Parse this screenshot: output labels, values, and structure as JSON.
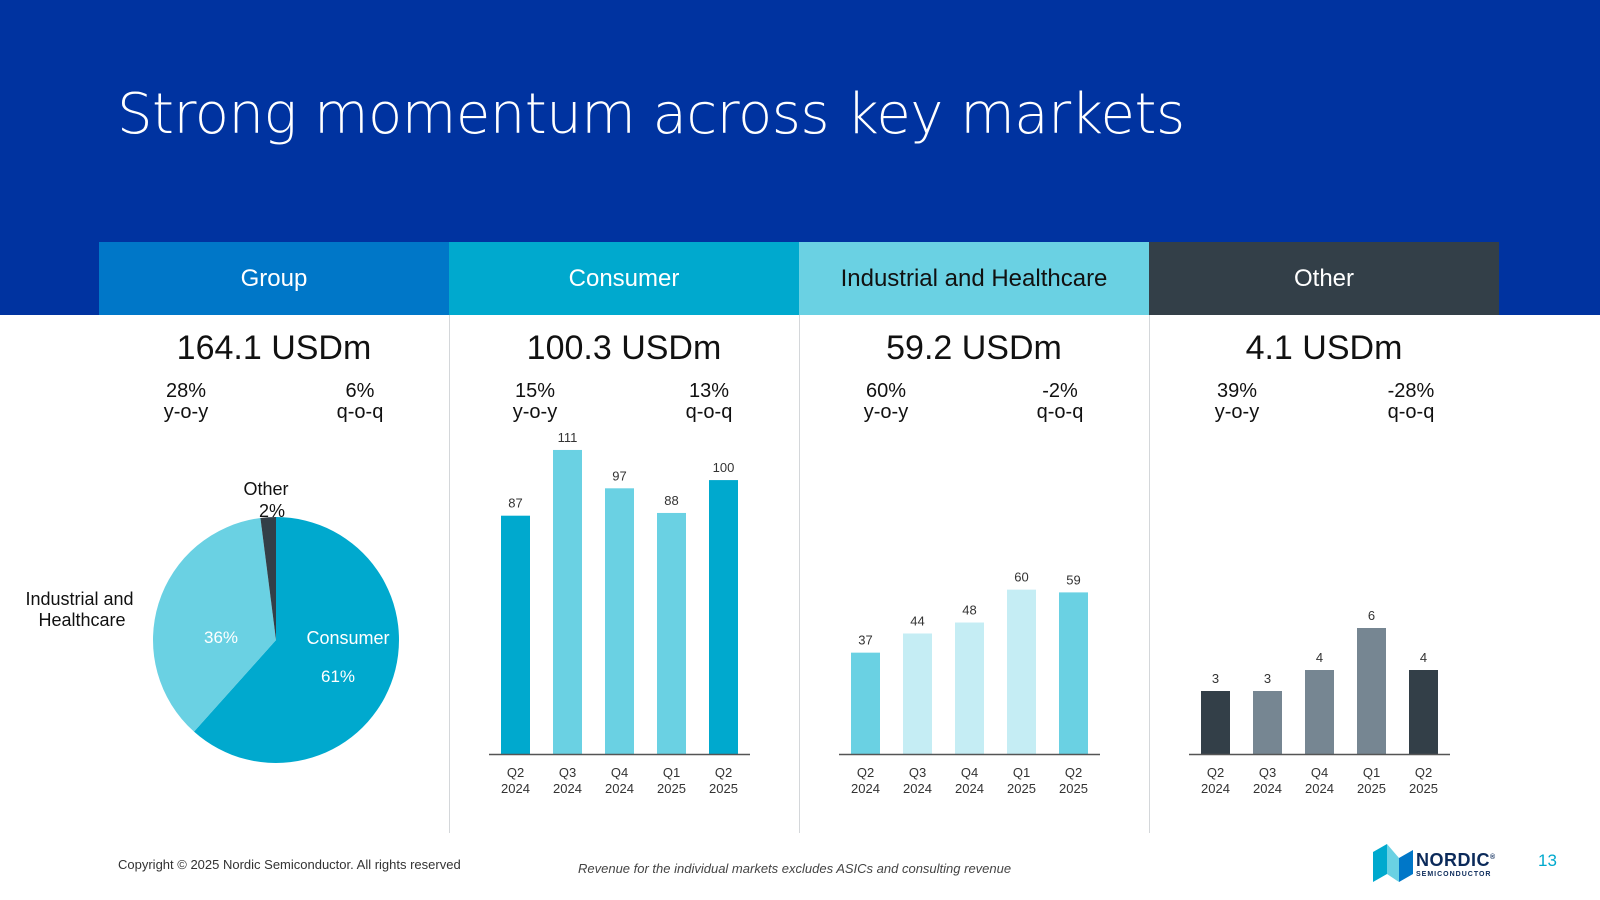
{
  "slide": {
    "title": "Strong momentum across key markets",
    "copyright": "Copyright © 2025 Nordic Semiconductor. All rights reserved",
    "footnote": "Revenue for the individual markets excludes ASICs and consulting revenue",
    "page_number": "13",
    "logo": {
      "wordmark": "NORDIC",
      "registered": "®",
      "subtitle": "SEMICONDUCTOR"
    }
  },
  "columns": [
    {
      "header": "Group",
      "header_color": "#0077c8",
      "header_text_color": "#ffffff",
      "total": "164.1 USDm",
      "yoy_value": "28%",
      "yoy_label": "y-o-y",
      "qoq_value": "6%",
      "qoq_label": "q-o-q"
    },
    {
      "header": "Consumer",
      "header_color": "#00a9ce",
      "header_text_color": "#ffffff",
      "total": "100.3 USDm",
      "yoy_value": "15%",
      "yoy_label": "y-o-y",
      "qoq_value": "13%",
      "qoq_label": "q-o-q"
    },
    {
      "header": "Industrial and Healthcare",
      "header_color": "#6ad1e3",
      "header_text_color": "#111111",
      "total": "59.2 USDm",
      "yoy_value": "60%",
      "yoy_label": "y-o-y",
      "qoq_value": "-2%",
      "qoq_label": "q-o-q"
    },
    {
      "header": "Other",
      "header_color": "#333f48",
      "header_text_color": "#ffffff",
      "total": "4.1 USDm",
      "yoy_value": "39%",
      "yoy_label": "y-o-y",
      "qoq_value": "-28%",
      "qoq_label": "q-o-q"
    }
  ],
  "chart_data": [
    {
      "type": "pie",
      "slices": [
        {
          "label": "Consumer",
          "value": 61,
          "value_label": "61%",
          "color": "#00a9ce"
        },
        {
          "label": "Industrial and Healthcare",
          "value": 36,
          "value_label": "36%",
          "color": "#6ad1e3"
        },
        {
          "label": "Other",
          "value": 2,
          "value_label": "2%",
          "color": "#333f48"
        }
      ]
    },
    {
      "type": "bar",
      "title": "Consumer",
      "categories": [
        [
          "Q2",
          "2024"
        ],
        [
          "Q3",
          "2024"
        ],
        [
          "Q4",
          "2024"
        ],
        [
          "Q1",
          "2025"
        ],
        [
          "Q2",
          "2025"
        ]
      ],
      "values": [
        87,
        111,
        97,
        88,
        100
      ],
      "colors": [
        "#00a9ce",
        "#6ad1e3",
        "#6ad1e3",
        "#6ad1e3",
        "#00a9ce"
      ],
      "ylim": [
        0,
        115
      ]
    },
    {
      "type": "bar",
      "title": "Industrial and Healthcare",
      "categories": [
        [
          "Q2",
          "2024"
        ],
        [
          "Q3",
          "2024"
        ],
        [
          "Q4",
          "2024"
        ],
        [
          "Q1",
          "2025"
        ],
        [
          "Q2",
          "2025"
        ]
      ],
      "values": [
        37,
        44,
        48,
        60,
        59
      ],
      "colors": [
        "#6ad1e3",
        "#c5edf4",
        "#c5edf4",
        "#c5edf4",
        "#6ad1e3"
      ],
      "ylim": [
        0,
        115
      ]
    },
    {
      "type": "bar",
      "title": "Other",
      "categories": [
        [
          "Q2",
          "2024"
        ],
        [
          "Q3",
          "2024"
        ],
        [
          "Q4",
          "2024"
        ],
        [
          "Q1",
          "2025"
        ],
        [
          "Q2",
          "2025"
        ]
      ],
      "values": [
        3,
        3,
        4,
        6,
        4
      ],
      "colors": [
        "#333f48",
        "#768692",
        "#768692",
        "#768692",
        "#333f48"
      ],
      "ylim": [
        0,
        15
      ]
    }
  ]
}
